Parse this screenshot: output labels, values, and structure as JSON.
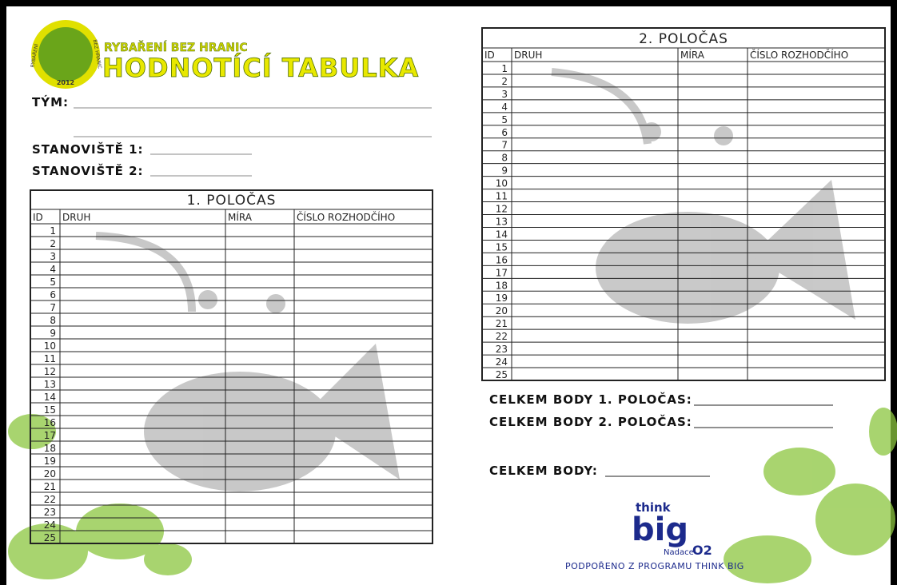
{
  "header": {
    "logo": {
      "left": "RYBAŘENÍ",
      "right": "BEZ HRANIC",
      "year": "2012"
    },
    "subtitle": "RYBAŘENÍ BEZ HRANIC",
    "title": "HODNOTÍCÍ TABULKA"
  },
  "fields": [
    "TÝM:",
    "STANOVIŠTĚ 1:",
    "STANOVIŠTĚ 2:"
  ],
  "tables": [
    {
      "title": "1. POLOČAS",
      "columns": [
        "ID",
        "DRUH",
        "MÍRA",
        "ČÍSLO ROZHODČÍHO"
      ],
      "ids": [
        1,
        2,
        3,
        4,
        5,
        6,
        7,
        8,
        9,
        10,
        11,
        12,
        13,
        14,
        15,
        16,
        17,
        18,
        19,
        20,
        21,
        22,
        23,
        24,
        25
      ]
    },
    {
      "title": "2. POLOČAS",
      "columns": [
        "ID",
        "DRUH",
        "MÍRA",
        "ČÍSLO ROZHODČÍHO"
      ],
      "ids": [
        1,
        2,
        3,
        4,
        5,
        6,
        7,
        8,
        9,
        10,
        11,
        12,
        13,
        14,
        15,
        16,
        17,
        18,
        19,
        20,
        21,
        22,
        23,
        24,
        25
      ]
    }
  ],
  "totals": [
    "CELKEM BODY 1. POLOČAS:",
    "CELKEM BODY 2. POLOČAS:",
    "CELKEM BODY:"
  ],
  "sponsor": {
    "think": "think",
    "big": "big",
    "foundation": "Nadace",
    "brand": "O2",
    "note": "PODPOŘENO Z PROGRAMU THINK BIG"
  }
}
